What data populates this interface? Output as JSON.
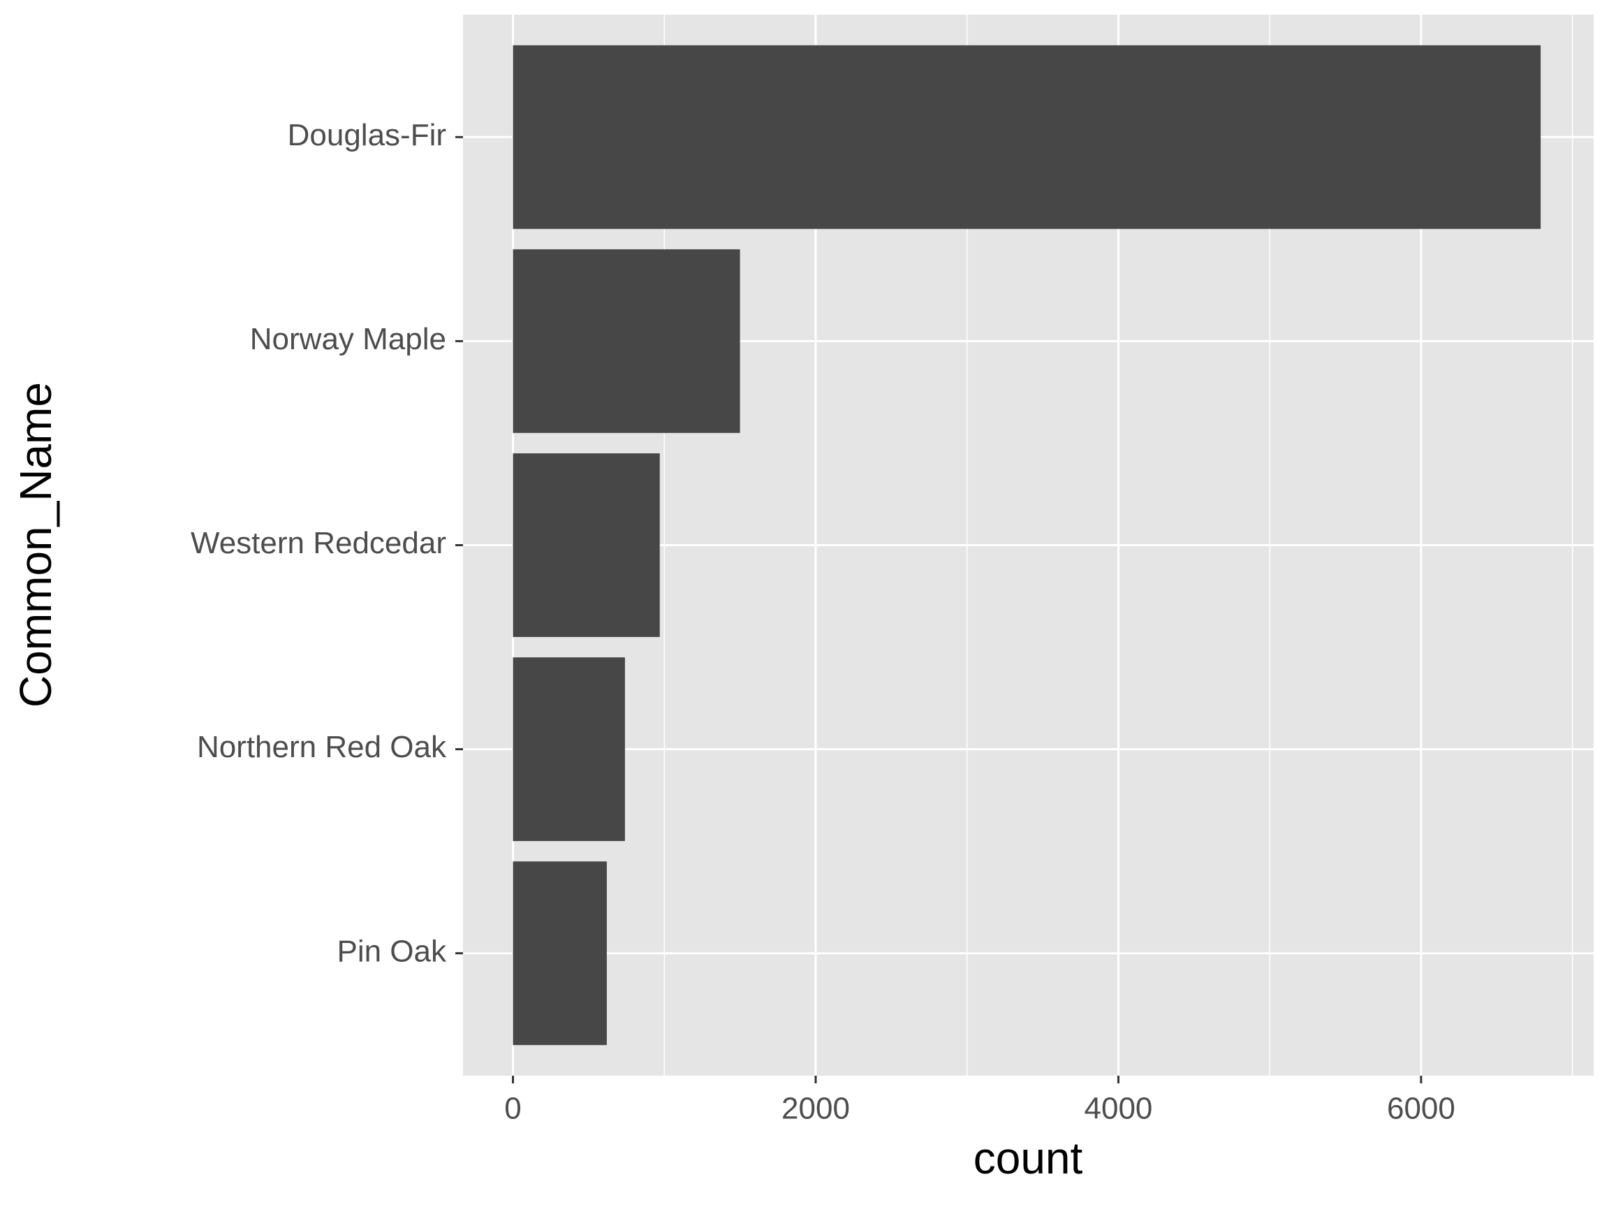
{
  "chart_data": {
    "type": "barh",
    "categories": [
      "Douglas-Fir",
      "Norway Maple",
      "Western Redcedar",
      "Northern Red Oak",
      "Pin Oak"
    ],
    "values": [
      6790,
      1500,
      970,
      740,
      620
    ],
    "color": "#474747",
    "xlabel": "count",
    "ylabel": "Common_Name",
    "xlim": [
      -330,
      7140
    ],
    "xticks": [
      0,
      2000,
      4000,
      6000
    ],
    "x_minor_grid": [
      1000,
      3000,
      5000,
      7000
    ],
    "grid": true
  }
}
